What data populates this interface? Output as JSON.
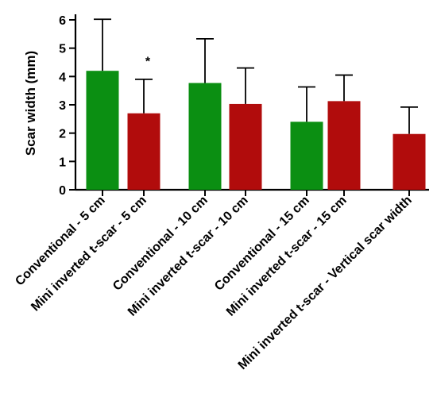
{
  "chart_data": {
    "type": "bar",
    "ylabel": "Scar width (mm)",
    "ylim": [
      0,
      6
    ],
    "yticks": [
      0,
      1,
      2,
      3,
      4,
      5,
      6
    ],
    "grid": false,
    "legend": "none",
    "colors": {
      "green": "#0b8f12",
      "red": "#b10c0c"
    },
    "categories": [
      "Conventional - 5 cm",
      "Mini inverted t-scar  - 5 cm",
      "Conventional - 10 cm",
      "Mini inverted t-scar - 10 cm",
      "Conventional - 15 cm",
      "Mini inverted t-scar - 15 cm",
      "Mini inverted t-scar - Vertical scar width"
    ],
    "values": [
      4.2,
      2.7,
      3.77,
      3.03,
      2.4,
      3.13,
      1.97
    ],
    "error_upper": [
      6.02,
      3.9,
      5.33,
      4.3,
      3.63,
      4.05,
      2.92
    ],
    "bar_colors": [
      "#0b8f12",
      "#b10c0c",
      "#0b8f12",
      "#b10c0c",
      "#0b8f12",
      "#b10c0c",
      "#b10c0c"
    ],
    "annotations": [
      {
        "category_index": 1,
        "text": "*",
        "y": 4.55
      }
    ]
  }
}
